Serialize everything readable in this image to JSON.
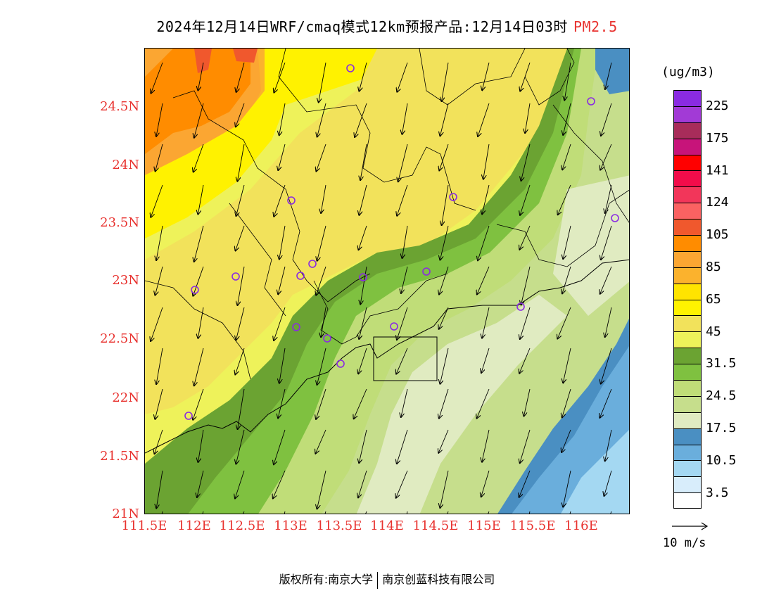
{
  "title": {
    "main": "2024年12月14日WRF/cmaq模式12km预报产品:12月14日03时",
    "pollutant": "PM2.5",
    "pollutant_color": "#e8322f"
  },
  "map": {
    "lat_labels": [
      "24.5N",
      "24N",
      "23.5N",
      "23N",
      "22.5N",
      "22N",
      "21.5N",
      "21N"
    ],
    "lon_labels": [
      "111.5E",
      "112E",
      "112.5E",
      "113E",
      "113.5E",
      "114E",
      "114.5E",
      "115E",
      "115.5E",
      "116E"
    ],
    "lon_range": [
      111.5,
      116.3
    ],
    "lat_range": [
      21,
      25
    ]
  },
  "colorbar": {
    "unit": "(ug/m3)",
    "colors": [
      "#8a2be2",
      "#a23ad6",
      "#a82c5a",
      "#c7147a",
      "#ff0000",
      "#f20c4a",
      "#f2365a",
      "#fa6262",
      "#f0582d",
      "#ff8c00",
      "#fba632",
      "#fbb22d",
      "#ffe400",
      "#fff200",
      "#f2e25b",
      "#eef25a",
      "#6ba332",
      "#7fc140",
      "#c0dd78",
      "#c6de8c",
      "#e0ebc1",
      "#4a8fc2",
      "#6aaedc",
      "#a4d8f2",
      "#d8edfb",
      "#ffffff"
    ],
    "labels": [
      "225",
      "175",
      "141",
      "124",
      "105",
      "85",
      "65",
      "45",
      "31.5",
      "24.5",
      "17.5",
      "10.5",
      "3.5"
    ]
  },
  "wind_reference": {
    "label": "10 m/s"
  },
  "footer": {
    "left": "版权所有:南京大学",
    "right": "南京创蓝科技有限公司"
  }
}
